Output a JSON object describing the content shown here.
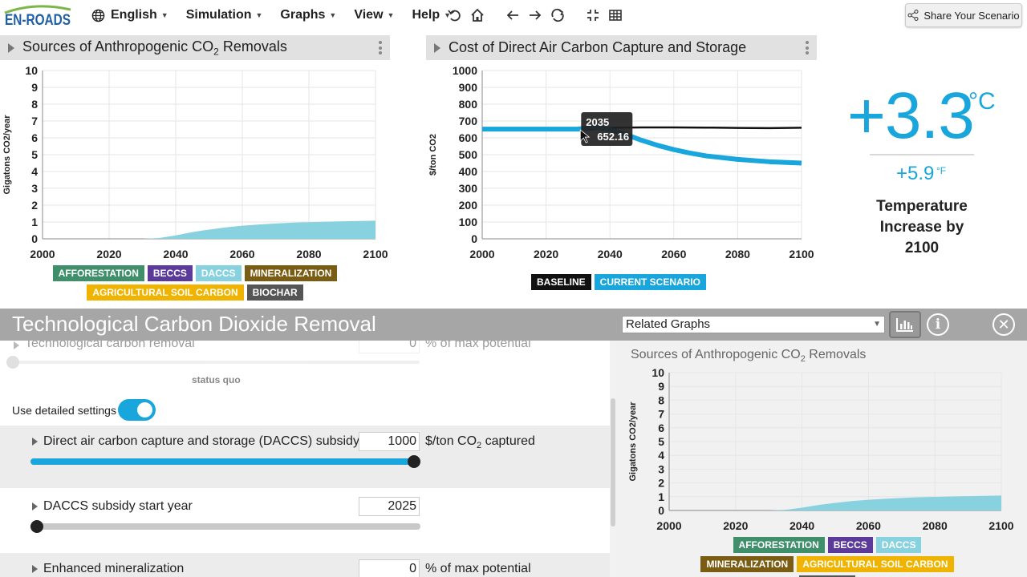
{
  "brand": {
    "logo_text": "EN-ROADS",
    "accent": "#18a6dc"
  },
  "menu": [
    {
      "label": "English",
      "icon": "globe-icon"
    },
    {
      "label": "Simulation"
    },
    {
      "label": "Graphs"
    },
    {
      "label": "View"
    },
    {
      "label": "Help"
    }
  ],
  "toolbar_icons": [
    "undo-icon",
    "home-icon",
    "back-arrow-icon",
    "forward-arrow-icon",
    "redo-icon",
    "compress-icon",
    "grid-icon"
  ],
  "share_label": "Share Your Scenario",
  "graph1": {
    "title_main": "Sources of Anthropogenic CO",
    "title_sub": "2",
    "title_end": " Removals"
  },
  "graph2": {
    "title": "Cost of Direct Air Carbon Capture and Storage"
  },
  "temperature": {
    "celsius": "+3.3",
    "celsius_unit": "°C",
    "fahrenheit": "+5.9",
    "fahrenheit_unit": "°F",
    "label": "Temperature Increase by 2100"
  },
  "removal_legend": [
    {
      "label": "AFFORESTATION",
      "color": "#3f8f6b"
    },
    {
      "label": "BECCS",
      "color": "#5b3a99"
    },
    {
      "label": "DACCS",
      "color": "#88d2e0"
    },
    {
      "label": "MINERALIZATION",
      "color": "#7a5d12"
    },
    {
      "label": "AGRICULTURAL SOIL CARBON",
      "color": "#f0b400"
    },
    {
      "label": "BIOCHAR",
      "color": "#555555"
    }
  ],
  "cost_legend": [
    {
      "label": "BASELINE",
      "color": "#111111"
    },
    {
      "label": "CURRENT SCENARIO",
      "color": "#18a6dc"
    }
  ],
  "tooltip": {
    "year": "2035",
    "value": "652.16"
  },
  "lever_panel": {
    "title": "Technological Carbon Dioxide Removal",
    "related_label": "Related Graphs",
    "top_lever": {
      "label": "Technological carbon removal",
      "value": "0",
      "unit": "% of max potential",
      "status": "status quo"
    },
    "detailed_label": "Use detailed settings",
    "detailed_on": true,
    "levers": [
      {
        "label": "Direct air carbon capture and storage (DACCS) subsidy",
        "value": "1000",
        "unit_pre": "$/ton CO",
        "unit_sub": "2",
        "unit_post": " captured",
        "fraction": 1.0
      },
      {
        "label": "DACCS subsidy start year",
        "value": "2025",
        "unit_pre": "",
        "unit_sub": "",
        "unit_post": "",
        "fraction": 0.0
      },
      {
        "label": "Enhanced mineralization",
        "value": "0",
        "unit_pre": "% of max potential",
        "unit_sub": "",
        "unit_post": ""
      }
    ],
    "related_graph_title_main": "Sources of Anthropogenic CO",
    "related_graph_title_sub": "2",
    "related_graph_title_end": " Removals"
  },
  "chart_data": [
    {
      "type": "area",
      "title": "Sources of Anthropogenic CO2 Removals",
      "ylabel": "Gigatons CO2/year",
      "xlim": [
        2000,
        2100
      ],
      "ylim": [
        0,
        10
      ],
      "xticks": [
        2000,
        2020,
        2040,
        2060,
        2080,
        2100
      ],
      "yticks": [
        0,
        1,
        2,
        3,
        4,
        5,
        6,
        7,
        8,
        9,
        10
      ],
      "grid": true,
      "legend_position": "bottom",
      "series": [
        {
          "name": "DACCS",
          "color": "#88d2e0",
          "x": [
            2030,
            2035,
            2040,
            2045,
            2050,
            2055,
            2060,
            2065,
            2070,
            2075,
            2080,
            2085,
            2090,
            2095,
            2100
          ],
          "y": [
            0,
            0.05,
            0.2,
            0.4,
            0.55,
            0.68,
            0.78,
            0.85,
            0.91,
            0.96,
            0.99,
            1.02,
            1.04,
            1.06,
            1.08
          ]
        }
      ]
    },
    {
      "type": "line",
      "title": "Cost of Direct Air Carbon Capture and Storage",
      "ylabel": "$/ton CO2",
      "xlim": [
        2000,
        2100
      ],
      "ylim": [
        0,
        1000
      ],
      "xticks": [
        2000,
        2020,
        2040,
        2060,
        2080,
        2100
      ],
      "yticks": [
        0,
        100,
        200,
        300,
        400,
        500,
        600,
        700,
        800,
        900,
        1000
      ],
      "grid": true,
      "legend_position": "bottom",
      "series": [
        {
          "name": "BASELINE",
          "color": "#111111",
          "x": [
            2000,
            2020,
            2030,
            2035,
            2040,
            2050,
            2060,
            2070,
            2080,
            2090,
            2100
          ],
          "y": [
            645,
            645,
            645,
            652,
            660,
            662,
            662,
            661,
            659,
            658,
            660
          ]
        },
        {
          "name": "CURRENT SCENARIO",
          "color": "#18a6dc",
          "x": [
            2000,
            2020,
            2030,
            2035,
            2040,
            2045,
            2050,
            2055,
            2060,
            2065,
            2070,
            2080,
            2090,
            2100
          ],
          "y": [
            652,
            652,
            652,
            665,
            650,
            620,
            585,
            555,
            530,
            510,
            493,
            472,
            458,
            450
          ]
        }
      ]
    },
    {
      "type": "area",
      "title": "Sources of Anthropogenic CO2 Removals",
      "ylabel": "Gigatons CO2/year",
      "xlim": [
        2000,
        2100
      ],
      "ylim": [
        0,
        10
      ],
      "xticks": [
        2000,
        2020,
        2040,
        2060,
        2080,
        2100
      ],
      "yticks": [
        0,
        1,
        2,
        3,
        4,
        5,
        6,
        7,
        8,
        9,
        10
      ],
      "grid": true,
      "legend_position": "bottom",
      "series": [
        {
          "name": "DACCS",
          "color": "#88d2e0",
          "x": [
            2030,
            2035,
            2040,
            2045,
            2050,
            2055,
            2060,
            2065,
            2070,
            2075,
            2080,
            2085,
            2090,
            2095,
            2100
          ],
          "y": [
            0,
            0.05,
            0.2,
            0.4,
            0.55,
            0.68,
            0.78,
            0.85,
            0.91,
            0.96,
            0.99,
            1.02,
            1.04,
            1.06,
            1.08
          ]
        }
      ]
    }
  ]
}
